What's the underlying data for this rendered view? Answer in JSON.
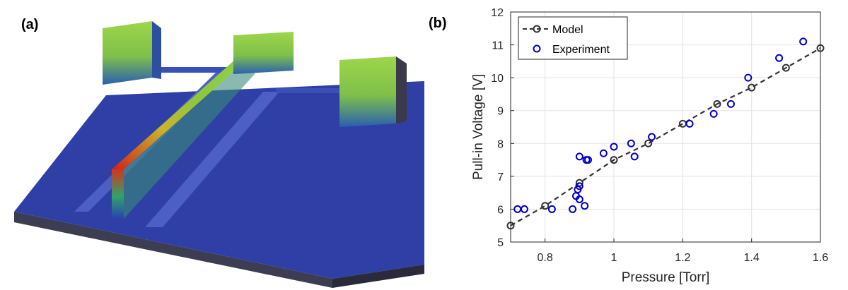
{
  "panels": {
    "a_label": "(a)",
    "b_label": "(b)"
  },
  "figure_a": {
    "icon": "3d-surface-profile-image"
  },
  "colors": {
    "model": "#333333",
    "experiment": "#0000cc",
    "surface": "#2e3fa4"
  },
  "chart_data": {
    "type": "scatter",
    "xlabel": "Pressure [Torr]",
    "ylabel": "Pull-in Voltage [V]",
    "xlim": [
      0.7,
      1.6
    ],
    "ylim": [
      5,
      12
    ],
    "xticks": [
      0.8,
      1.0,
      1.2,
      1.4,
      1.6
    ],
    "xtick_labels": [
      "0.8",
      "1",
      "1.2",
      "1.4",
      "1.6"
    ],
    "yticks": [
      5,
      6,
      7,
      8,
      9,
      10,
      11,
      12
    ],
    "ytick_labels": [
      "5",
      "6",
      "7",
      "8",
      "9",
      "10",
      "11",
      "12"
    ],
    "grid": true,
    "legend": "top-left",
    "series": [
      {
        "name": "Model",
        "style": "dashed-line-with-circle-markers",
        "color": "#333333",
        "x": [
          0.7,
          0.8,
          0.9,
          1.0,
          1.1,
          1.2,
          1.3,
          1.4,
          1.5,
          1.6
        ],
        "y": [
          5.5,
          6.1,
          6.8,
          7.5,
          8.0,
          8.6,
          9.2,
          9.7,
          10.3,
          10.9
        ]
      },
      {
        "name": "Experiment",
        "style": "circle-markers",
        "color": "#0000cc",
        "x": [
          0.72,
          0.74,
          0.82,
          0.88,
          0.89,
          0.895,
          0.9,
          0.9,
          0.915,
          0.92,
          0.925,
          0.9,
          0.97,
          1.0,
          1.05,
          1.06,
          1.11,
          1.22,
          1.29,
          1.34,
          1.39,
          1.48,
          1.55
        ],
        "y": [
          6.0,
          6.0,
          6.0,
          6.0,
          6.4,
          6.6,
          6.3,
          7.6,
          6.1,
          7.5,
          7.5,
          6.7,
          7.7,
          7.9,
          8.0,
          7.6,
          8.2,
          8.6,
          8.9,
          9.2,
          10.0,
          10.6,
          11.1
        ]
      }
    ]
  }
}
